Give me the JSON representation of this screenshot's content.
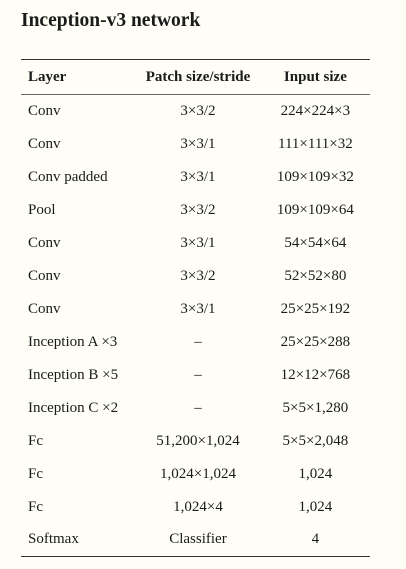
{
  "title": "Inception-v3 network",
  "headers": [
    "Layer",
    "Patch size/stride",
    "Input size"
  ],
  "rows": [
    [
      "Conv",
      "3×3/2",
      "224×224×3"
    ],
    [
      "Conv",
      "3×3/1",
      "111×111×32"
    ],
    [
      "Conv padded",
      "3×3/1",
      "109×109×32"
    ],
    [
      "Pool",
      "3×3/2",
      "109×109×64"
    ],
    [
      "Conv",
      "3×3/1",
      "54×54×64"
    ],
    [
      "Conv",
      "3×3/2",
      "52×52×80"
    ],
    [
      "Conv",
      "3×3/1",
      "25×25×192"
    ],
    [
      "Inception A ×3",
      "–",
      "25×25×288"
    ],
    [
      "Inception B ×5",
      "–",
      "12×12×768"
    ],
    [
      "Inception C ×2",
      "–",
      "5×5×1,280"
    ],
    [
      "Fc",
      "51,200×1,024",
      "5×5×2,048"
    ],
    [
      "Fc",
      "1,024×1,024",
      "1,024"
    ],
    [
      "Fc",
      "1,024×4",
      "1,024"
    ],
    [
      "Softmax",
      "Classifier",
      "4"
    ]
  ]
}
